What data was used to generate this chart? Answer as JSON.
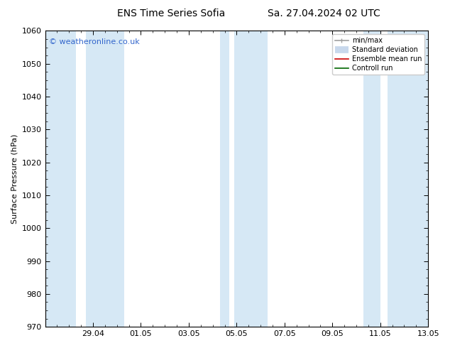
{
  "title_left": "ENS Time Series Sofia",
  "title_right": "Sa. 27.04.2024 02 UTC",
  "ylabel": "Surface Pressure (hPa)",
  "ylim": [
    970,
    1060
  ],
  "yticks": [
    970,
    980,
    990,
    1000,
    1010,
    1020,
    1030,
    1040,
    1050,
    1060
  ],
  "xlim_start": 0,
  "xlim_end": 16,
  "xtick_labels": [
    "29.04",
    "01.05",
    "03.05",
    "05.05",
    "07.05",
    "09.05",
    "11.05",
    "13.05"
  ],
  "xtick_positions": [
    2,
    4,
    6,
    8,
    10,
    12,
    14,
    16
  ],
  "bg_color": "#ffffff",
  "plot_bg_color": "#ffffff",
  "shaded_bands": [
    {
      "xmin": 0.0,
      "xmax": 1.3,
      "color": "#d6e8f5"
    },
    {
      "xmin": 1.7,
      "xmax": 3.3,
      "color": "#d6e8f5"
    },
    {
      "xmin": 7.3,
      "xmax": 7.7,
      "color": "#d6e8f5"
    },
    {
      "xmin": 7.9,
      "xmax": 9.3,
      "color": "#d6e8f5"
    },
    {
      "xmin": 13.3,
      "xmax": 14.0,
      "color": "#d6e8f5"
    },
    {
      "xmin": 14.3,
      "xmax": 16.0,
      "color": "#d6e8f5"
    }
  ],
  "watermark_text": "© weatheronline.co.uk",
  "watermark_color": "#3366cc",
  "legend_items": [
    {
      "label": "min/max",
      "color": "#a0a0a0",
      "lw": 1.2
    },
    {
      "label": "Standard deviation",
      "color": "#c8d8ec",
      "lw": 7
    },
    {
      "label": "Ensemble mean run",
      "color": "#cc0000",
      "lw": 1.2
    },
    {
      "label": "Controll run",
      "color": "#006600",
      "lw": 1.2
    }
  ],
  "tick_fontsize": 8,
  "label_fontsize": 8,
  "title_fontsize": 10,
  "watermark_fontsize": 8
}
